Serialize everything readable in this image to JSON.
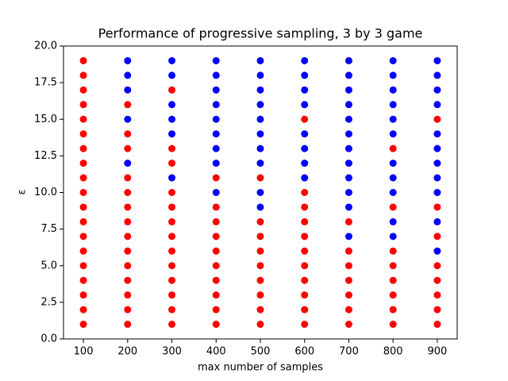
{
  "chart_data": {
    "type": "scatter",
    "title": "Performance of progressive sampling, 3 by 3 game",
    "xlabel": "max number of samples",
    "ylabel": "ε",
    "xlim": [
      55,
      945
    ],
    "ylim": [
      0,
      20
    ],
    "xticks": [
      100,
      200,
      300,
      400,
      500,
      600,
      700,
      800,
      900
    ],
    "yticks": [
      {
        "value": 0,
        "label": "0.0"
      },
      {
        "value": 2.5,
        "label": "2.5"
      },
      {
        "value": 5,
        "label": "5.0"
      },
      {
        "value": 7.5,
        "label": "7.5"
      },
      {
        "value": 10,
        "label": "10.0"
      },
      {
        "value": 12.5,
        "label": "12.5"
      },
      {
        "value": 15,
        "label": "15.0"
      },
      {
        "value": 17.5,
        "label": "17.5"
      },
      {
        "value": 20,
        "label": "20.0"
      }
    ],
    "series": [
      {
        "color": "#ff0000",
        "x": [
          100,
          100,
          100,
          100,
          100,
          100,
          100,
          100,
          100,
          100,
          100,
          100,
          100,
          100,
          100,
          100,
          100,
          100,
          100,
          200,
          200,
          200,
          200,
          200,
          200,
          200,
          200,
          200,
          200,
          200,
          200,
          200,
          200,
          300,
          300,
          300,
          300,
          300,
          300,
          300,
          300,
          300,
          300,
          300,
          300,
          300,
          400,
          400,
          400,
          400,
          400,
          400,
          400,
          400,
          400,
          400,
          500,
          500,
          500,
          500,
          500,
          500,
          500,
          500,
          500,
          600,
          600,
          600,
          600,
          600,
          600,
          600,
          600,
          600,
          600,
          600,
          700,
          700,
          700,
          700,
          700,
          700,
          700,
          800,
          800,
          800,
          800,
          800,
          800,
          800,
          800,
          900,
          900,
          900,
          900,
          900,
          900,
          900,
          900
        ],
        "y": [
          1,
          2,
          3,
          4,
          5,
          6,
          7,
          8,
          9,
          10,
          11,
          12,
          13,
          14,
          15,
          16,
          17,
          18,
          19,
          1,
          2,
          3,
          4,
          5,
          6,
          7,
          8,
          9,
          10,
          11,
          13,
          14,
          16,
          1,
          2,
          3,
          4,
          5,
          6,
          7,
          8,
          9,
          10,
          12,
          13,
          17,
          1,
          2,
          3,
          4,
          5,
          6,
          7,
          8,
          9,
          11,
          1,
          2,
          3,
          4,
          5,
          6,
          7,
          8,
          11,
          1,
          2,
          3,
          4,
          5,
          6,
          7,
          8,
          9,
          10,
          15,
          1,
          2,
          3,
          4,
          5,
          6,
          8,
          1,
          2,
          3,
          4,
          5,
          6,
          9,
          13,
          1,
          2,
          3,
          4,
          5,
          7,
          9,
          15
        ]
      },
      {
        "color": "#0000ff",
        "x": [
          200,
          200,
          200,
          200,
          200,
          300,
          300,
          300,
          300,
          300,
          300,
          400,
          400,
          400,
          400,
          400,
          400,
          400,
          400,
          400,
          500,
          500,
          500,
          500,
          500,
          500,
          500,
          500,
          500,
          500,
          600,
          600,
          600,
          600,
          600,
          600,
          600,
          600,
          700,
          700,
          700,
          700,
          700,
          700,
          700,
          700,
          700,
          700,
          700,
          700,
          800,
          800,
          800,
          800,
          800,
          800,
          800,
          800,
          800,
          800,
          800,
          900,
          900,
          900,
          900,
          900,
          900,
          900,
          900,
          900,
          900,
          900
        ],
        "y": [
          12,
          15,
          17,
          18,
          19,
          11,
          14,
          15,
          16,
          18,
          19,
          10,
          12,
          13,
          14,
          15,
          16,
          17,
          18,
          19,
          9,
          10,
          12,
          13,
          14,
          15,
          16,
          17,
          18,
          19,
          11,
          12,
          13,
          14,
          16,
          17,
          18,
          19,
          7,
          9,
          10,
          11,
          12,
          13,
          14,
          15,
          16,
          17,
          18,
          19,
          7,
          8,
          10,
          11,
          12,
          14,
          15,
          16,
          17,
          18,
          19,
          6,
          8,
          10,
          11,
          12,
          13,
          14,
          16,
          17,
          18,
          19
        ]
      }
    ]
  }
}
